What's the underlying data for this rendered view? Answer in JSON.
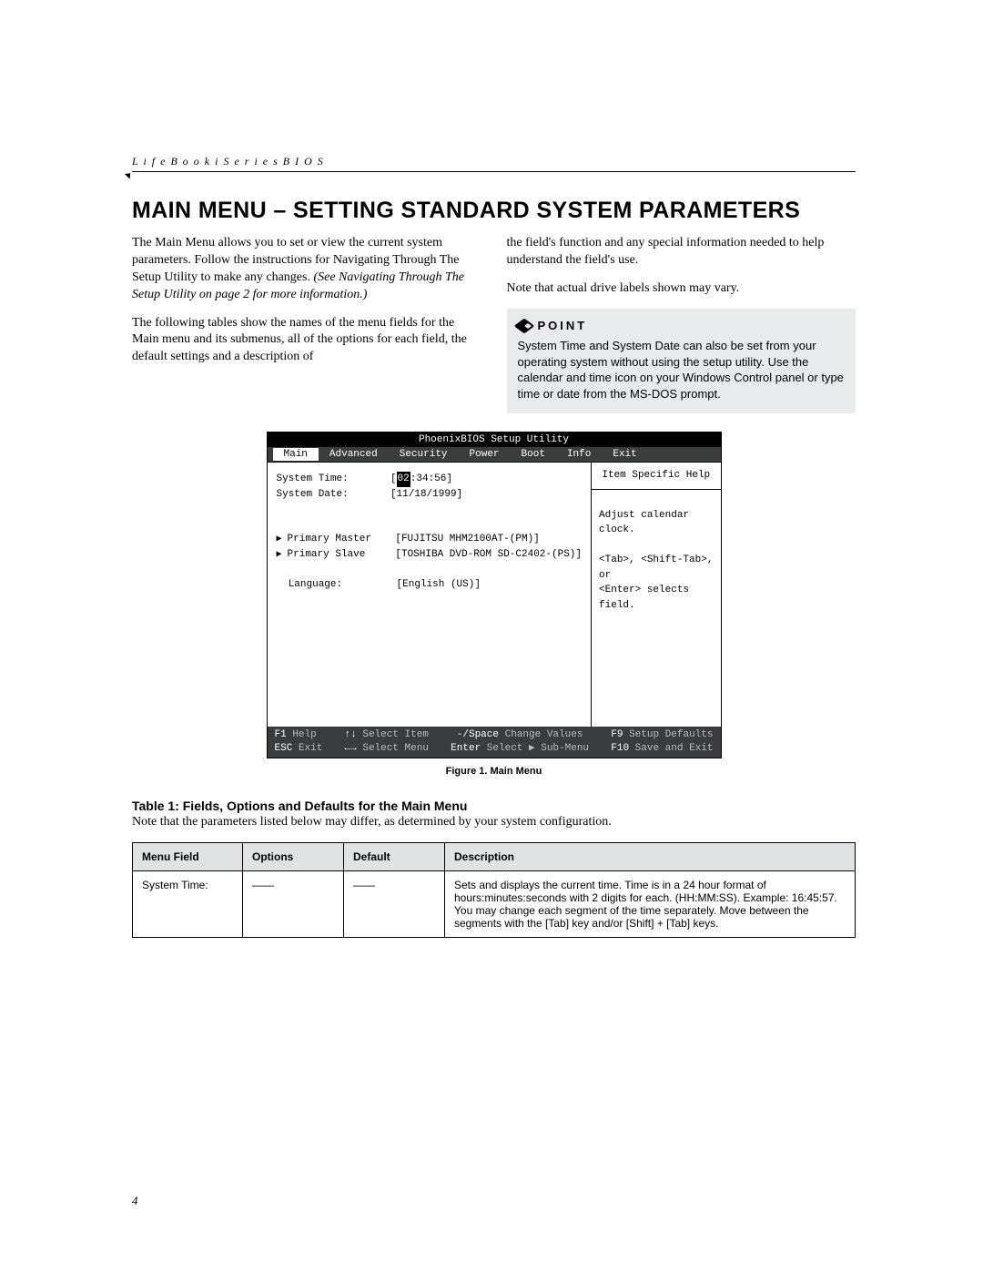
{
  "header": {
    "running_head": "L i f e B o o k   i   S e r i e s   B I O S",
    "title": "Main Menu – Setting Standard System Parameters"
  },
  "body": {
    "para1": "The Main Menu allows you to set or view the current system parameters. Follow the instructions for Navigating Through The Setup Utility to make any changes.",
    "para1_ital": "(See Navigating Through The Setup Utility on page 2 for more information.)",
    "para2": "The following tables show the names of the menu fields for the Main menu and its submenus, all of the options for each field, the default settings and a description of",
    "para3": "the field's function and any special information needed to help understand the field's use.",
    "para4": "Note that actual drive labels shown may vary.",
    "point_label": "POINT",
    "point_text": "System Time and System Date can also be set from your operating system without using the setup utility. Use the calendar and time icon on your Windows Control panel or type time or date from the MS-DOS prompt."
  },
  "bios": {
    "title": "PhoenixBIOS Setup Utility",
    "tabs": [
      "Main",
      "Advanced",
      "Security",
      "Power",
      "Boot",
      "Info",
      "Exit"
    ],
    "active_tab": "Main",
    "system_time_label": "System Time:",
    "system_time_val_prefix": "[",
    "system_time_hour": "02",
    "system_time_rest": ":34:56]",
    "system_date_label": "System Date:",
    "system_date_val": "[11/18/1999]",
    "primary_master_label": "Primary Master",
    "primary_master_val": "[FUJITSU MHM2100AT-(PM)]",
    "primary_slave_label": "Primary Slave",
    "primary_slave_val": "[TOSHIBA DVD-ROM SD-C2402-(PS)]",
    "language_label": "Language:",
    "language_val": "[English (US)]",
    "help_title": "Item Specific Help",
    "help_line1": "Adjust calendar clock.",
    "help_line2": "<Tab>, <Shift-Tab>, or",
    "help_line3": "<Enter> selects field.",
    "footer": {
      "f1": "F1",
      "help": "Help",
      "sel_item": "Select Item",
      "minus_space": "-/Space",
      "change_vals": "Change Values",
      "f9": "F9",
      "setup_def": "Setup Defaults",
      "esc": "ESC",
      "exit": "Exit",
      "sel_menu": "Select Menu",
      "enter": "Enter",
      "sel_sub": "Select ▶ Sub-Menu",
      "f10": "F10",
      "save_exit": "Save and Exit"
    }
  },
  "figure_caption": "Figure 1.  Main Menu",
  "table": {
    "title": "Table 1: Fields, Options and Defaults for the Main Menu",
    "note": "Note that the parameters listed below may differ, as determined by your system configuration.",
    "headers": [
      "Menu Field",
      "Options",
      "Default",
      "Description"
    ],
    "rows": [
      {
        "field": "System Time:",
        "options": "——",
        "default": "——",
        "desc": "Sets and displays the current time. Time is in a 24 hour format of hours:minutes:seconds with 2 digits for each. (HH:MM:SS). Example: 16:45:57. You may change each segment of the time separately. Move between the segments with the [Tab] key and/or [Shift] + [Tab] keys."
      }
    ]
  },
  "page_number": "4",
  "colors": {
    "page_bg": "#ffffff",
    "text": "#000000",
    "bios_bar": "#3b3c3e",
    "bios_bar_text": "#ffffff",
    "bios_bar_dim": "#b9bbbf",
    "point_bg": "#e9eaeb",
    "table_header_bg": "#e1e2e4"
  }
}
